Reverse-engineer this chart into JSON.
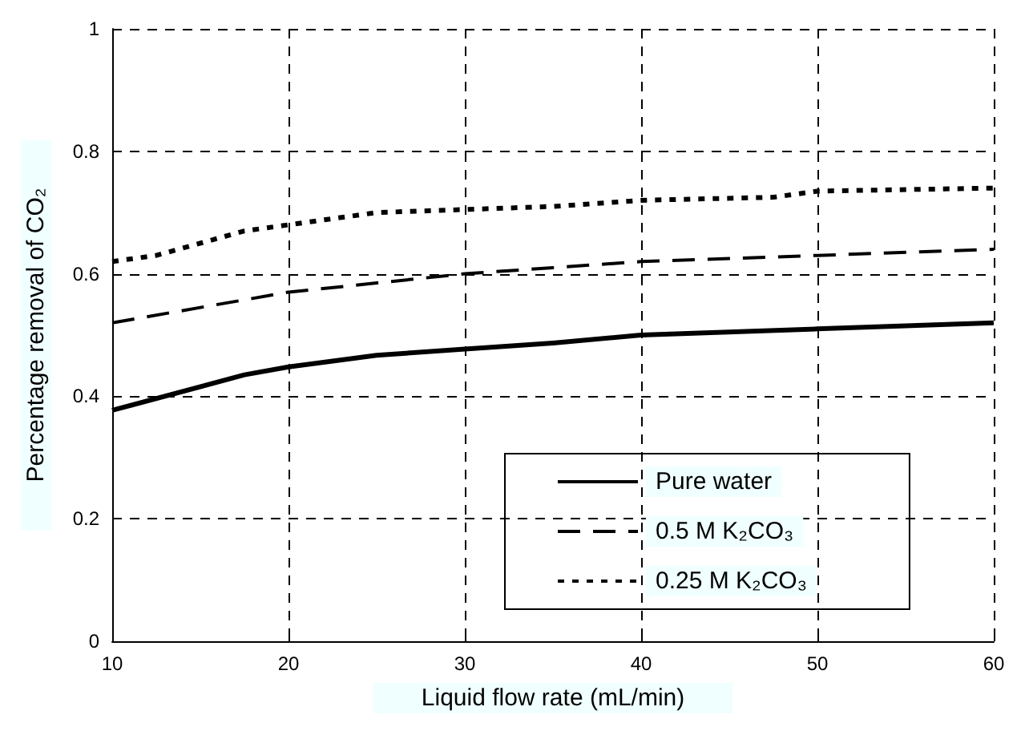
{
  "chart_data": {
    "type": "line",
    "xlabel": "Liquid flow rate (mL/min)",
    "ylabel": "Percentage removal of CO₂",
    "xlim": [
      10,
      60
    ],
    "xticks": [
      10,
      20,
      30,
      40,
      50,
      60
    ],
    "ylim": [
      0,
      1
    ],
    "yticks": [
      0,
      0.2,
      0.4,
      0.6,
      0.8,
      1
    ],
    "grid": true,
    "legend": "bottom right",
    "marker": "none",
    "series": [
      {
        "name": "Pure water",
        "color": "#000000",
        "line_style": "solid",
        "x": [
          10,
          17.5,
          20,
          25,
          30,
          35,
          40,
          50,
          60
        ],
        "values": [
          0.377,
          0.435,
          0.448,
          0.467,
          0.477,
          0.487,
          0.5,
          0.51,
          0.52
        ]
      },
      {
        "name": "0.5 M K₂CO₃",
        "color": "#000000",
        "line_style": "dashed",
        "x": [
          10,
          20,
          25,
          30,
          35,
          40,
          50,
          60
        ],
        "values": [
          0.52,
          0.57,
          0.585,
          0.6,
          0.61,
          0.62,
          0.63,
          0.64
        ]
      },
      {
        "name": "0.25 M K₂CO₃",
        "color": "#000000",
        "line_style": "dotted",
        "x": [
          10,
          12.5,
          17.5,
          20,
          25,
          30,
          35,
          40,
          47.5,
          50,
          60
        ],
        "values": [
          0.62,
          0.63,
          0.67,
          0.68,
          0.7,
          0.705,
          0.71,
          0.72,
          0.725,
          0.735,
          0.74
        ]
      }
    ]
  }
}
